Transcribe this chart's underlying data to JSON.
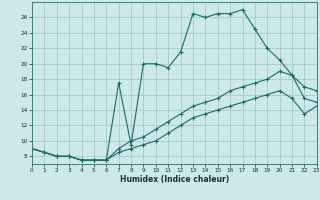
{
  "xlabel": "Humidex (Indice chaleur)",
  "bg_color": "#cce8e8",
  "grid_color": "#aacfcf",
  "line_color": "#1a6b6b",
  "line1_x": [
    0,
    1,
    2,
    3,
    4,
    5,
    6,
    7,
    8,
    9,
    10,
    11,
    12,
    13,
    14,
    15,
    16,
    17,
    18,
    19,
    20,
    21,
    22,
    23
  ],
  "line1_y": [
    9.0,
    8.5,
    8.0,
    8.0,
    7.5,
    7.5,
    7.5,
    17.5,
    9.5,
    20.0,
    20.0,
    19.5,
    21.5,
    26.5,
    26.0,
    26.5,
    26.5,
    27.0,
    24.5,
    22.0,
    20.5,
    18.5,
    17.0,
    16.5
  ],
  "line2_x": [
    0,
    1,
    2,
    3,
    4,
    5,
    6,
    7,
    8,
    9,
    10,
    11,
    12,
    13,
    14,
    15,
    16,
    17,
    18,
    19,
    20,
    21,
    22,
    23
  ],
  "line2_y": [
    9.0,
    8.5,
    8.0,
    8.0,
    7.5,
    7.5,
    7.5,
    9.0,
    10.0,
    10.5,
    11.5,
    12.5,
    13.5,
    14.5,
    15.0,
    15.5,
    16.5,
    17.0,
    17.5,
    18.0,
    19.0,
    18.5,
    15.5,
    15.0
  ],
  "line3_x": [
    0,
    1,
    2,
    3,
    4,
    5,
    6,
    7,
    8,
    9,
    10,
    11,
    12,
    13,
    14,
    15,
    16,
    17,
    18,
    19,
    20,
    21,
    22,
    23
  ],
  "line3_y": [
    9.0,
    8.5,
    8.0,
    8.0,
    7.5,
    7.5,
    7.5,
    8.5,
    9.0,
    9.5,
    10.0,
    11.0,
    12.0,
    13.0,
    13.5,
    14.0,
    14.5,
    15.0,
    15.5,
    16.0,
    16.5,
    15.5,
    13.5,
    14.5
  ],
  "xlim": [
    0,
    23
  ],
  "ylim": [
    7,
    28
  ],
  "yticks": [
    8,
    10,
    12,
    14,
    16,
    18,
    20,
    22,
    24,
    26
  ],
  "xticks": [
    0,
    1,
    2,
    3,
    4,
    5,
    6,
    7,
    8,
    9,
    10,
    11,
    12,
    13,
    14,
    15,
    16,
    17,
    18,
    19,
    20,
    21,
    22,
    23
  ],
  "tick_fontsize": 4.2,
  "xlabel_fontsize": 5.5
}
